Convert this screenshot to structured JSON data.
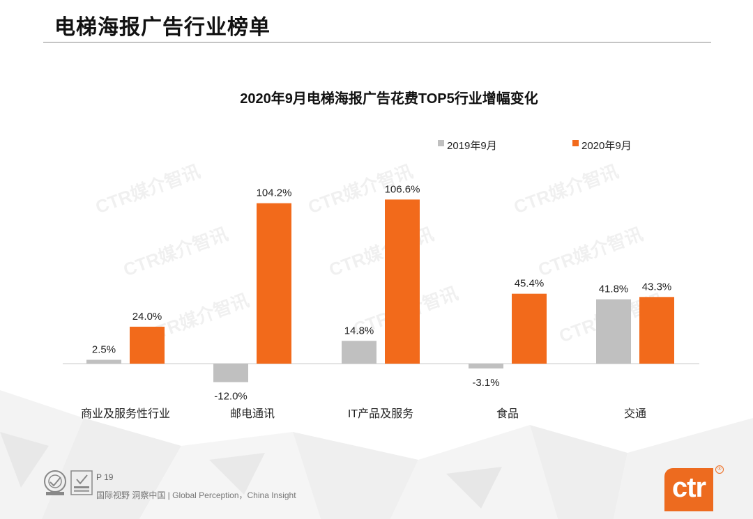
{
  "page_title": "电梯海报广告行业榜单",
  "footer": {
    "page_number": "P 19",
    "tagline": "国际视野  洞察中国 |  Global Perception，China Insight"
  },
  "logo": {
    "text": "ctr",
    "reg_mark": "®"
  },
  "watermark": "CTR媒介智讯",
  "colors": {
    "series_2019": "#c0c0c0",
    "series_2020": "#f26a1b",
    "accent": "#ed6b1f"
  },
  "chart_data": {
    "type": "bar",
    "title": "2020年9月电梯海报广告花费TOP5行业增幅变化",
    "categories": [
      "商业及服务性行业",
      "邮电通讯",
      "IT产品及服务",
      "食品",
      "交通"
    ],
    "series": [
      {
        "name": "2019年9月",
        "values": [
          2.5,
          -12.0,
          14.8,
          -3.1,
          41.8
        ],
        "labels": [
          "2.5%",
          "-12.0%",
          "14.8%",
          "-3.1%",
          "41.8%"
        ]
      },
      {
        "name": "2020年9月",
        "values": [
          24.0,
          104.2,
          106.6,
          45.4,
          43.3
        ],
        "labels": [
          "24.0%",
          "104.2%",
          "106.6%",
          "45.4%",
          "43.3%"
        ]
      }
    ],
    "xlabel": "",
    "ylabel": "",
    "ylim": [
      -14,
      110
    ],
    "grid": false,
    "legend": "top-right"
  }
}
